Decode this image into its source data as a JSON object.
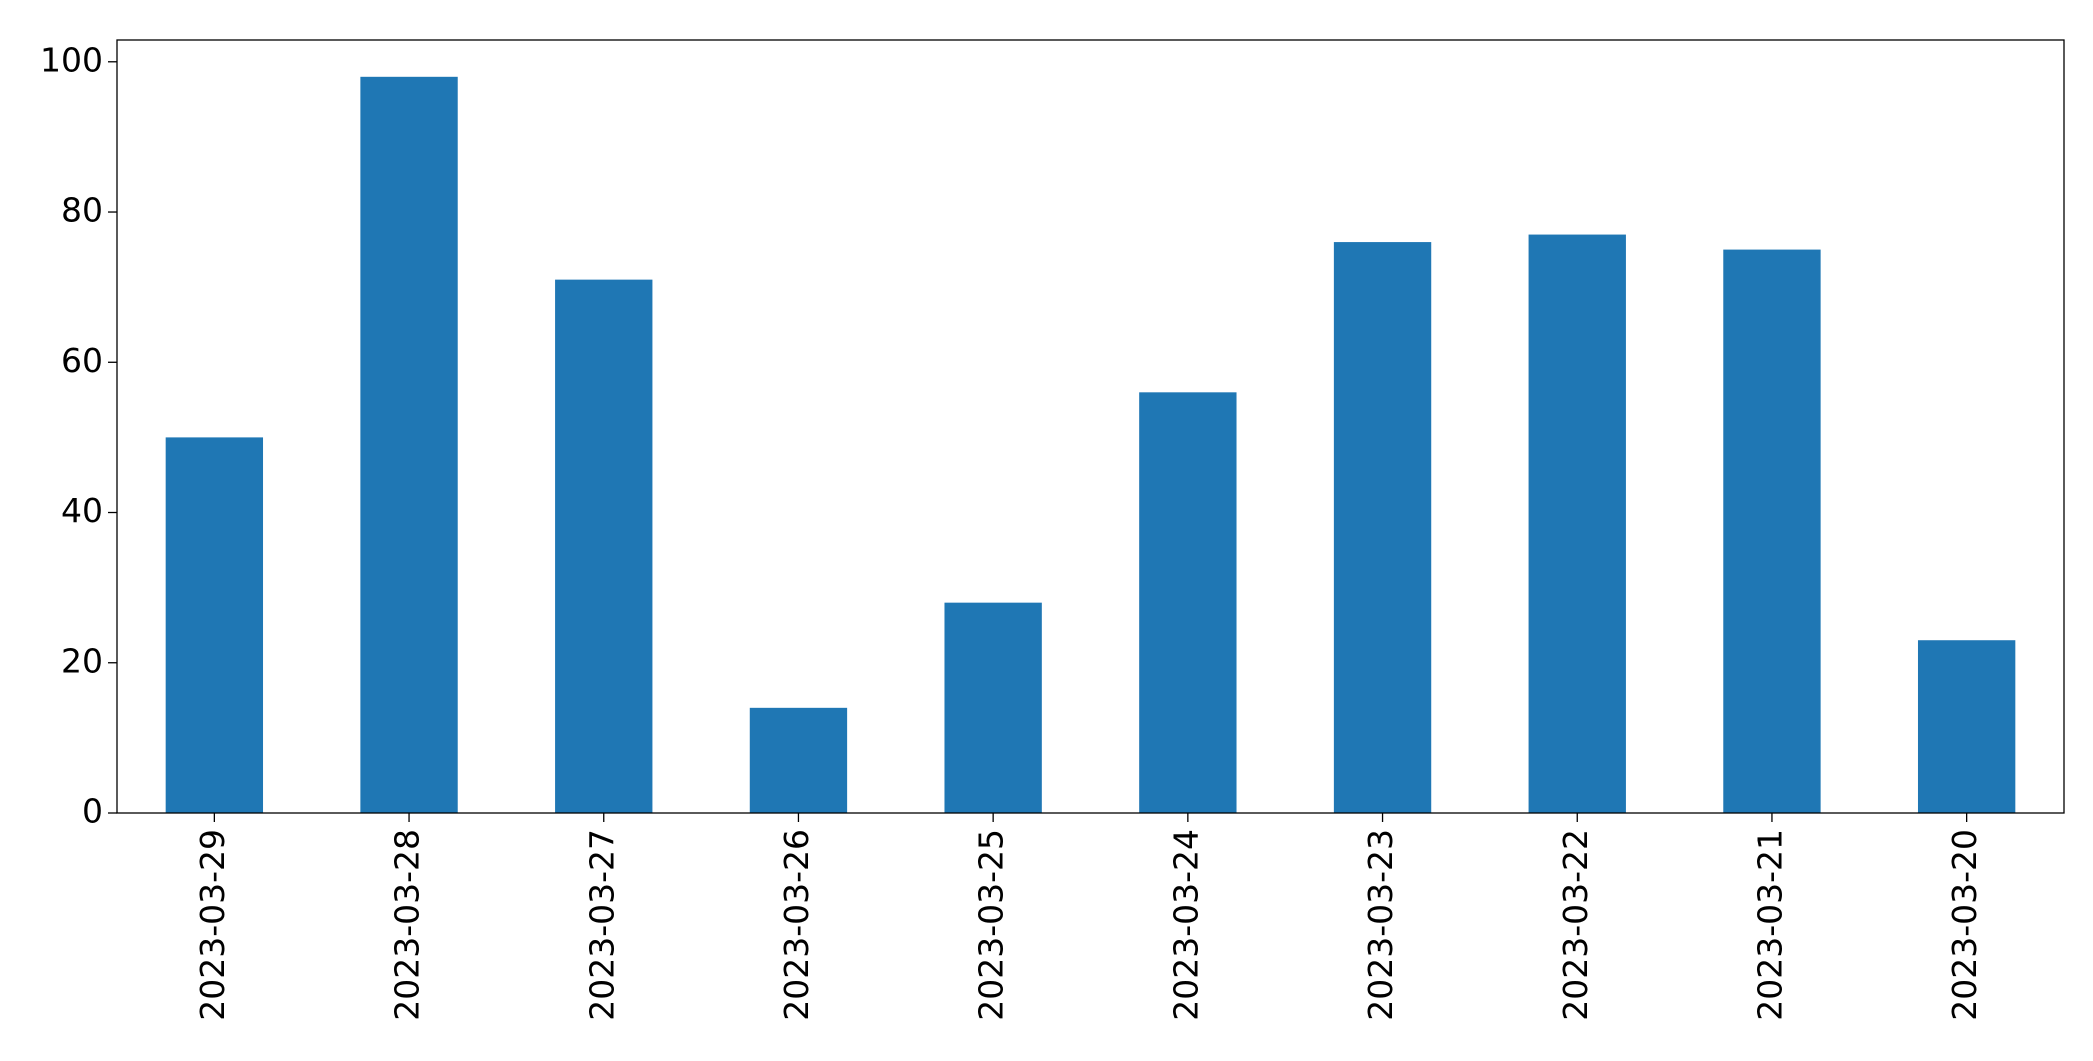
{
  "chart_data": {
    "type": "bar",
    "categories": [
      "2023-03-29",
      "2023-03-28",
      "2023-03-27",
      "2023-03-26",
      "2023-03-25",
      "2023-03-24",
      "2023-03-23",
      "2023-03-22",
      "2023-03-21",
      "2023-03-20"
    ],
    "values": [
      50,
      98,
      71,
      14,
      28,
      56,
      76,
      77,
      75,
      23
    ],
    "color": "#1f77b4",
    "ylim": [
      0,
      102.9
    ],
    "yticks": [
      0,
      20,
      40,
      60,
      80,
      100
    ],
    "grid": false
  }
}
